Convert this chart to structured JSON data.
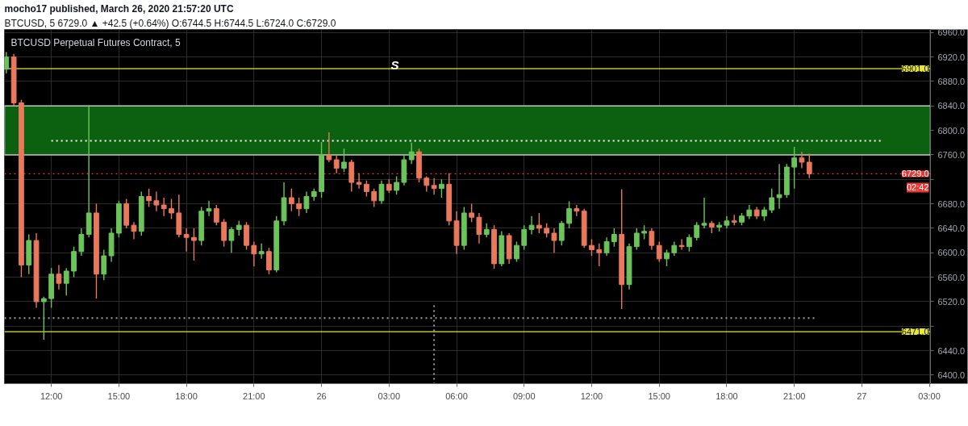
{
  "chart_data": {
    "type": "candlestick",
    "title": "mocho17 published, March 26, 2020 21:57:20 UTC",
    "subtitle": "BTCUSD, 5 6729.0 ▲ +42.5 (+0.64%) O:6744.5 H:6744.5 L:6724.0 C:6729.0",
    "x": [
      "2020-03-25T10:00",
      "2020-03-25T10:20",
      "2020-03-25T10:40",
      "2020-03-25T11:00",
      "2020-03-25T11:20",
      "2020-03-25T11:40",
      "2020-03-25T12:00",
      "2020-03-25T12:20",
      "2020-03-25T12:40",
      "2020-03-25T13:00",
      "2020-03-25T13:20",
      "2020-03-25T13:40",
      "2020-03-25T14:00",
      "2020-03-25T14:20",
      "2020-03-25T14:40",
      "2020-03-25T15:00",
      "2020-03-25T15:20",
      "2020-03-25T15:40",
      "2020-03-25T16:00",
      "2020-03-25T16:20",
      "2020-03-25T16:40",
      "2020-03-25T17:00",
      "2020-03-25T17:20",
      "2020-03-25T17:40",
      "2020-03-25T18:00",
      "2020-03-25T18:20",
      "2020-03-25T18:40",
      "2020-03-25T19:00",
      "2020-03-25T19:20",
      "2020-03-25T19:40",
      "2020-03-25T20:00",
      "2020-03-25T20:20",
      "2020-03-25T20:40",
      "2020-03-25T21:00",
      "2020-03-25T21:20",
      "2020-03-25T21:40",
      "2020-03-25T22:00",
      "2020-03-25T22:20",
      "2020-03-25T22:40",
      "2020-03-25T23:00",
      "2020-03-25T23:20",
      "2020-03-25T23:40",
      "2020-03-26T00:00",
      "2020-03-26T00:20",
      "2020-03-26T00:40",
      "2020-03-26T01:00",
      "2020-03-26T01:20",
      "2020-03-26T01:40",
      "2020-03-26T02:00",
      "2020-03-26T02:20",
      "2020-03-26T02:40",
      "2020-03-26T03:00",
      "2020-03-26T03:20",
      "2020-03-26T03:40",
      "2020-03-26T04:00",
      "2020-03-26T04:20",
      "2020-03-26T04:40",
      "2020-03-26T05:00",
      "2020-03-26T05:20",
      "2020-03-26T05:40",
      "2020-03-26T06:00",
      "2020-03-26T06:20",
      "2020-03-26T06:40",
      "2020-03-26T07:00",
      "2020-03-26T07:20",
      "2020-03-26T07:40",
      "2020-03-26T08:00",
      "2020-03-26T08:20",
      "2020-03-26T08:40",
      "2020-03-26T09:00",
      "2020-03-26T09:20",
      "2020-03-26T09:40",
      "2020-03-26T10:00",
      "2020-03-26T10:20",
      "2020-03-26T10:40",
      "2020-03-26T11:00",
      "2020-03-26T11:20",
      "2020-03-26T11:40",
      "2020-03-26T12:00",
      "2020-03-26T12:20",
      "2020-03-26T12:40",
      "2020-03-26T13:00",
      "2020-03-26T13:20",
      "2020-03-26T13:40",
      "2020-03-26T14:00",
      "2020-03-26T14:20",
      "2020-03-26T14:40",
      "2020-03-26T15:00",
      "2020-03-26T15:20",
      "2020-03-26T15:40",
      "2020-03-26T16:00",
      "2020-03-26T16:20",
      "2020-03-26T16:40",
      "2020-03-26T17:00",
      "2020-03-26T17:20",
      "2020-03-26T17:40",
      "2020-03-26T18:00",
      "2020-03-26T18:20",
      "2020-03-26T18:40",
      "2020-03-26T19:00",
      "2020-03-26T19:20",
      "2020-03-26T19:40",
      "2020-03-26T20:00",
      "2020-03-26T20:20",
      "2020-03-26T20:40",
      "2020-03-26T21:00",
      "2020-03-26T21:20",
      "2020-03-26T21:40"
    ],
    "ohlc": [
      [
        6900,
        6928,
        6893,
        6920
      ],
      [
        6920,
        6925,
        6840,
        6845
      ],
      [
        6845,
        6850,
        6560,
        6580
      ],
      [
        6580,
        6630,
        6565,
        6620
      ],
      [
        6620,
        6632,
        6510,
        6520
      ],
      [
        6520,
        6528,
        6458,
        6525
      ],
      [
        6525,
        6575,
        6510,
        6565
      ],
      [
        6565,
        6580,
        6540,
        6550
      ],
      [
        6550,
        6575,
        6530,
        6570
      ],
      [
        6570,
        6610,
        6560,
        6602
      ],
      [
        6602,
        6640,
        6595,
        6630
      ],
      [
        6630,
        6841,
        6625,
        6665
      ],
      [
        6665,
        6680,
        6525,
        6565
      ],
      [
        6565,
        6605,
        6555,
        6595
      ],
      [
        6595,
        6640,
        6585,
        6632
      ],
      [
        6632,
        6685,
        6625,
        6680
      ],
      [
        6680,
        6688,
        6640,
        6645
      ],
      [
        6645,
        6650,
        6622,
        6635
      ],
      [
        6635,
        6700,
        6628,
        6692
      ],
      [
        6692,
        6705,
        6675,
        6685
      ],
      [
        6685,
        6700,
        6668,
        6678
      ],
      [
        6678,
        6690,
        6660,
        6672
      ],
      [
        6672,
        6688,
        6655,
        6665
      ],
      [
        6665,
        6695,
        6625,
        6630
      ],
      [
        6630,
        6640,
        6602,
        6625
      ],
      [
        6625,
        6640,
        6587,
        6620
      ],
      [
        6620,
        6675,
        6612,
        6668
      ],
      [
        6668,
        6685,
        6660,
        6672
      ],
      [
        6672,
        6678,
        6645,
        6650
      ],
      [
        6650,
        6655,
        6610,
        6620
      ],
      [
        6620,
        6642,
        6600,
        6638
      ],
      [
        6638,
        6652,
        6628,
        6645
      ],
      [
        6645,
        6650,
        6605,
        6612
      ],
      [
        6612,
        6618,
        6578,
        6598
      ],
      [
        6598,
        6615,
        6590,
        6602
      ],
      [
        6602,
        6608,
        6565,
        6572
      ],
      [
        6572,
        6660,
        6568,
        6652
      ],
      [
        6652,
        6715,
        6645,
        6690
      ],
      [
        6690,
        6705,
        6668,
        6680
      ],
      [
        6680,
        6690,
        6660,
        6672
      ],
      [
        6672,
        6700,
        6665,
        6692
      ],
      [
        6692,
        6705,
        6685,
        6700
      ],
      [
        6700,
        6781,
        6690,
        6760
      ],
      [
        6760,
        6797,
        6748,
        6752
      ],
      [
        6752,
        6760,
        6730,
        6738
      ],
      [
        6738,
        6770,
        6732,
        6748
      ],
      [
        6748,
        6752,
        6700,
        6715
      ],
      [
        6715,
        6730,
        6705,
        6712
      ],
      [
        6712,
        6718,
        6692,
        6700
      ],
      [
        6700,
        6705,
        6675,
        6685
      ],
      [
        6685,
        6718,
        6680,
        6712
      ],
      [
        6712,
        6720,
        6698,
        6702
      ],
      [
        6702,
        6725,
        6695,
        6715
      ],
      [
        6715,
        6760,
        6710,
        6752
      ],
      [
        6752,
        6780,
        6745,
        6765
      ],
      [
        6765,
        6770,
        6715,
        6722
      ],
      [
        6722,
        6725,
        6700,
        6710
      ],
      [
        6710,
        6722,
        6695,
        6705
      ],
      [
        6705,
        6720,
        6690,
        6712
      ],
      [
        6712,
        6730,
        6645,
        6652
      ],
      [
        6652,
        6668,
        6598,
        6612
      ],
      [
        6612,
        6675,
        6605,
        6665
      ],
      [
        6665,
        6680,
        6650,
        6658
      ],
      [
        6658,
        6665,
        6615,
        6630
      ],
      [
        6630,
        6648,
        6625,
        6638
      ],
      [
        6638,
        6645,
        6574,
        6582
      ],
      [
        6582,
        6635,
        6578,
        6628
      ],
      [
        6628,
        6632,
        6582,
        6590
      ],
      [
        6590,
        6618,
        6585,
        6612
      ],
      [
        6612,
        6645,
        6605,
        6638
      ],
      [
        6638,
        6660,
        6630,
        6645
      ],
      [
        6645,
        6665,
        6632,
        6640
      ],
      [
        6640,
        6648,
        6625,
        6632
      ],
      [
        6632,
        6640,
        6600,
        6620
      ],
      [
        6620,
        6652,
        6612,
        6648
      ],
      [
        6648,
        6684,
        6640,
        6672
      ],
      [
        6672,
        6678,
        6660,
        6668
      ],
      [
        6668,
        6672,
        6608,
        6612
      ],
      [
        6612,
        6622,
        6595,
        6605
      ],
      [
        6605,
        6615,
        6578,
        6600
      ],
      [
        6600,
        6625,
        6595,
        6618
      ],
      [
        6618,
        6640,
        6610,
        6630
      ],
      [
        6630,
        6704,
        6508,
        6548
      ],
      [
        6548,
        6615,
        6540,
        6610
      ],
      [
        6610,
        6640,
        6605,
        6632
      ],
      [
        6632,
        6645,
        6622,
        6635
      ],
      [
        6635,
        6640,
        6605,
        6612
      ],
      [
        6612,
        6618,
        6585,
        6590
      ],
      [
        6590,
        6605,
        6578,
        6600
      ],
      [
        6600,
        6618,
        6595,
        6612
      ],
      [
        6612,
        6622,
        6605,
        6610
      ],
      [
        6610,
        6630,
        6602,
        6625
      ],
      [
        6625,
        6650,
        6620,
        6645
      ],
      [
        6645,
        6690,
        6640,
        6648
      ],
      [
        6648,
        6652,
        6632,
        6642
      ],
      [
        6642,
        6650,
        6635,
        6645
      ],
      [
        6645,
        6660,
        6640,
        6652
      ],
      [
        6652,
        6662,
        6645,
        6650
      ],
      [
        6650,
        6665,
        6645,
        6660
      ],
      [
        6660,
        6678,
        6655,
        6670
      ],
      [
        6670,
        6675,
        6655,
        6660
      ],
      [
        6660,
        6675,
        6652,
        6670
      ],
      [
        6670,
        6705,
        6665,
        6690
      ],
      [
        6690,
        6745,
        6672,
        6695
      ],
      [
        6695,
        6745,
        6690,
        6740
      ],
      [
        6740,
        6773,
        6705,
        6755
      ],
      [
        6755,
        6765,
        6738,
        6748
      ],
      [
        6748,
        6762,
        6722,
        6729
      ]
    ],
    "colors": [
      "#6cc35b",
      "#e9785c",
      "#e9785c",
      "#6cc35b",
      "#e9785c",
      "#6cc35b",
      "#6cc35b",
      "#e9785c",
      "#6cc35b",
      "#6cc35b",
      "#6cc35b",
      "#6cc35b",
      "#e9785c",
      "#6cc35b",
      "#6cc35b",
      "#6cc35b",
      "#e9785c",
      "#e9785c",
      "#6cc35b",
      "#e9785c",
      "#e9785c",
      "#e9785c",
      "#e9785c",
      "#e9785c",
      "#e9785c",
      "#e9785c",
      "#6cc35b",
      "#6cc35b",
      "#e9785c",
      "#e9785c",
      "#6cc35b",
      "#6cc35b",
      "#e9785c",
      "#e9785c",
      "#6cc35b",
      "#e9785c",
      "#6cc35b",
      "#6cc35b",
      "#e9785c",
      "#e9785c",
      "#6cc35b",
      "#6cc35b",
      "#6cc35b",
      "#e9785c",
      "#e9785c",
      "#6cc35b",
      "#e9785c",
      "#e9785c",
      "#e9785c",
      "#e9785c",
      "#6cc35b",
      "#e9785c",
      "#6cc35b",
      "#6cc35b",
      "#6cc35b",
      "#e9785c",
      "#e9785c",
      "#e9785c",
      "#6cc35b",
      "#e9785c",
      "#e9785c",
      "#6cc35b",
      "#e9785c",
      "#e9785c",
      "#6cc35b",
      "#e9785c",
      "#6cc35b",
      "#e9785c",
      "#6cc35b",
      "#6cc35b",
      "#6cc35b",
      "#e9785c",
      "#e9785c",
      "#e9785c",
      "#6cc35b",
      "#6cc35b",
      "#e9785c",
      "#e9785c",
      "#e9785c",
      "#e9785c",
      "#6cc35b",
      "#6cc35b",
      "#e9785c",
      "#6cc35b",
      "#6cc35b",
      "#6cc35b",
      "#e9785c",
      "#e9785c",
      "#6cc35b",
      "#6cc35b",
      "#e9785c",
      "#6cc35b",
      "#6cc35b",
      "#6cc35b",
      "#e9785c",
      "#6cc35b",
      "#6cc35b",
      "#e9785c",
      "#6cc35b",
      "#6cc35b",
      "#e9785c",
      "#6cc35b",
      "#6cc35b",
      "#6cc35b",
      "#6cc35b",
      "#6cc35b",
      "#e9785c",
      "#e9785c"
    ],
    "series": [
      {
        "type": "line",
        "x": [
          "2020-03-25T12:00",
          "2020-03-27T00:50"
        ],
        "values": [
          6783,
          6783
        ],
        "color": "#ffffff",
        "line_style": "dotted"
      },
      {
        "type": "line",
        "x": [
          "2020-03-25T09:55",
          "2020-03-26T21:55"
        ],
        "values": [
          6493,
          6493
        ],
        "color": "#9e9e9e",
        "line_style": "dotted"
      },
      {
        "type": "line",
        "x": [
          "2020-03-26T05:00",
          "2020-03-26T05:00"
        ],
        "values": [
          6514,
          6386
        ],
        "color": "#9e9e9e",
        "line_style": "dotted"
      }
    ],
    "xlim": [
      "2020-03-25T09:55",
      "2020-03-27T03:03"
    ],
    "xticks": [
      {
        "value": "2020-03-25T12:00",
        "label": "12:00"
      },
      {
        "value": "2020-03-25T15:00",
        "label": "15:00"
      },
      {
        "value": "2020-03-25T18:00",
        "label": "18:00"
      },
      {
        "value": "2020-03-25T21:00",
        "label": "21:00"
      },
      {
        "value": "2020-03-26T00:00",
        "label": "26"
      },
      {
        "value": "2020-03-26T03:00",
        "label": "03:00"
      },
      {
        "value": "2020-03-26T06:00",
        "label": "06:00"
      },
      {
        "value": "2020-03-26T09:00",
        "label": "09:00"
      },
      {
        "value": "2020-03-26T12:00",
        "label": "12:00"
      },
      {
        "value": "2020-03-26T15:00",
        "label": "15:00"
      },
      {
        "value": "2020-03-26T18:00",
        "label": "18:00"
      },
      {
        "value": "2020-03-26T21:00",
        "label": "21:00"
      },
      {
        "value": "2020-03-27T00:00",
        "label": "27"
      },
      {
        "value": "2020-03-27T03:00",
        "label": "03:00"
      }
    ],
    "ylim": [
      6386,
      6965
    ],
    "yticks": [
      {
        "value": 6400,
        "label": "6400.0"
      },
      {
        "value": 6440,
        "label": "6440.0"
      },
      {
        "value": 6480,
        "label": null
      },
      {
        "value": 6520,
        "label": "6520.0"
      },
      {
        "value": 6560,
        "label": "6560.0"
      },
      {
        "value": 6600,
        "label": "6600.0"
      },
      {
        "value": 6640,
        "label": "6640.0"
      },
      {
        "value": 6680,
        "label": "6680.0"
      },
      {
        "value": 6720,
        "label": null
      },
      {
        "value": 6760,
        "label": "6760.0"
      },
      {
        "value": 6800,
        "label": "6800.0"
      },
      {
        "value": 6840,
        "label": "6840.0"
      },
      {
        "value": 6880,
        "label": "6880.0"
      },
      {
        "value": 6920,
        "label": "6920.0"
      },
      {
        "value": 6960,
        "label": "6960.0"
      }
    ],
    "grid": true,
    "ref_lines": [
      {
        "axis": "y",
        "value": 6901,
        "label": "6901.0",
        "color": "#e8e830"
      },
      {
        "axis": "y",
        "value": 6471,
        "label": "6471.0",
        "color": "#e8e830"
      },
      {
        "axis": "y",
        "value": 6729,
        "label": "6729.0",
        "color": "#e53935",
        "line_style": "dotted"
      }
    ],
    "bands": [
      {
        "axis": "y",
        "from": 6760,
        "to": 6840,
        "color": "#0b6110"
      }
    ],
    "annotations": [
      "BTCUSD Perpetual Futures Contract, 5",
      "S",
      "02:42"
    ]
  }
}
